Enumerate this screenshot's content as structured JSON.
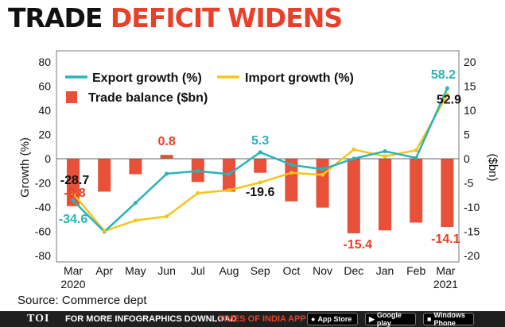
{
  "title": {
    "part1": "TRADE",
    "part2": "DEFICIT WIDENS"
  },
  "source": "Source: Commerce dept",
  "footer": {
    "brand": "TOI",
    "text": "FOR MORE  INFOGRAPHICS DOWNLOAD",
    "app": "TIMES OF INDIA APP",
    "stores": [
      "App Store",
      "Google play",
      "Windows Phone"
    ]
  },
  "colors": {
    "export": "#2ab3b7",
    "import": "#f5c518",
    "balance": "#e8503a",
    "red_label": "#e8402a"
  },
  "chart_data": {
    "type": "line+bar",
    "categories": [
      "Mar",
      "Apr",
      "May",
      "Jun",
      "Jul",
      "Aug",
      "Sep",
      "Oct",
      "Nov",
      "Dec",
      "Jan",
      "Feb",
      "Mar"
    ],
    "year_labels": [
      "2020",
      "2021"
    ],
    "series": [
      {
        "name": "Export growth (%)",
        "type": "line",
        "axis": "left",
        "values": [
          -34.6,
          -60.3,
          -36.5,
          -12.4,
          -10.2,
          -12.7,
          5.3,
          -5.1,
          -8.7,
          0.1,
          6.2,
          0.7,
          58.2
        ]
      },
      {
        "name": "Import growth (%)",
        "type": "line",
        "axis": "left",
        "values": [
          -28.7,
          -59.7,
          -51.0,
          -47.6,
          -28.4,
          -26.0,
          -19.6,
          -11.6,
          -13.3,
          7.6,
          2.0,
          7.0,
          52.9
        ]
      },
      {
        "name": "Trade balance ($bn)",
        "type": "bar",
        "axis": "right",
        "values": [
          -9.8,
          -6.8,
          -3.2,
          0.8,
          -4.8,
          -6.8,
          -2.9,
          -8.8,
          -10.1,
          -15.4,
          -14.8,
          -13.2,
          -14.1
        ]
      }
    ],
    "labels": [
      {
        "text": "-9.8",
        "color": "red"
      },
      {
        "text": "-28.7",
        "color": "black"
      },
      {
        "text": "-34.6",
        "color": "teal"
      },
      {
        "text": "0.8",
        "color": "red"
      },
      {
        "text": "5.3",
        "color": "teal"
      },
      {
        "text": "-19.6",
        "color": "black"
      },
      {
        "text": "-15.4",
        "color": "red"
      },
      {
        "text": "58.2",
        "color": "teal"
      },
      {
        "text": "52.9",
        "color": "black"
      },
      {
        "text": "-14.1",
        "color": "red"
      }
    ],
    "ylabel_left": "Growth (%)",
    "ylabel_right": "($bn)",
    "ylim_left": [
      -80,
      80
    ],
    "yticks_left": [
      80,
      60,
      40,
      20,
      0,
      -20,
      -40,
      -60,
      -80
    ],
    "ylim_right": [
      -20,
      20
    ],
    "yticks_right": [
      20,
      15,
      10,
      5,
      0,
      -5,
      -10,
      -15,
      -20
    ],
    "legend_position": "top-left",
    "grid": false
  }
}
